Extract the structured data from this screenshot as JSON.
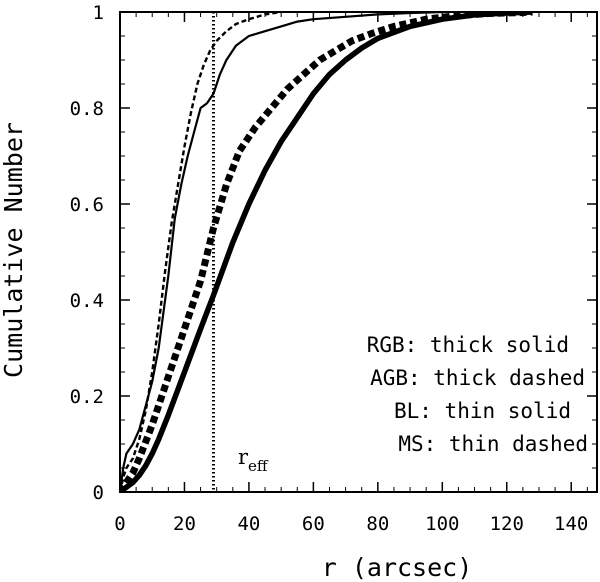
{
  "chart_data": {
    "type": "line",
    "xlabel": "r (arcsec)",
    "ylabel": "Cumulative Number",
    "xlim": [
      0,
      148
    ],
    "ylim": [
      0,
      1
    ],
    "x_ticks": [
      "0",
      "20",
      "40",
      "60",
      "80",
      "100",
      "120",
      "140"
    ],
    "y_ticks": [
      "0",
      "0.2",
      "0.4",
      "0.6",
      "0.8",
      "1"
    ],
    "grid": false,
    "legend_placement": "bottom-right",
    "legend": [
      "RGB: thick solid",
      "AGB: thick dashed",
      "BL: thin solid",
      "MS: thin dashed"
    ],
    "annotation": {
      "main": "r",
      "sub": "eff",
      "x": 29
    },
    "series": [
      {
        "name": "RGB",
        "style": "thick-solid",
        "x": [
          0,
          1,
          2,
          4,
          6,
          8,
          10,
          12,
          15,
          20,
          25,
          29,
          35,
          40,
          45,
          50,
          55,
          60,
          65,
          70,
          75,
          80,
          90,
          100,
          110,
          120,
          128
        ],
        "y": [
          0,
          0.005,
          0.01,
          0.02,
          0.035,
          0.055,
          0.08,
          0.11,
          0.16,
          0.25,
          0.34,
          0.41,
          0.52,
          0.6,
          0.67,
          0.73,
          0.78,
          0.83,
          0.87,
          0.9,
          0.925,
          0.945,
          0.97,
          0.985,
          0.994,
          0.998,
          1.0
        ]
      },
      {
        "name": "AGB",
        "style": "thick-dashed",
        "x": [
          0,
          2,
          4,
          6,
          10,
          15,
          20,
          25,
          29,
          33,
          37,
          42,
          47,
          52,
          57,
          62,
          67,
          72,
          78,
          85,
          95,
          105,
          115,
          125,
          128
        ],
        "y": [
          0,
          0.02,
          0.04,
          0.07,
          0.14,
          0.24,
          0.34,
          0.44,
          0.55,
          0.64,
          0.71,
          0.76,
          0.8,
          0.84,
          0.87,
          0.9,
          0.92,
          0.94,
          0.955,
          0.97,
          0.985,
          0.993,
          0.997,
          0.999,
          1.0
        ]
      },
      {
        "name": "BL",
        "style": "thin-solid",
        "x": [
          0,
          1,
          2,
          4,
          6,
          8,
          10,
          12,
          15,
          17,
          19,
          21,
          23,
          25,
          27,
          29,
          31,
          33,
          36,
          40,
          45,
          50,
          55,
          60,
          70,
          80,
          90,
          100
        ],
        "y": [
          0,
          0.05,
          0.08,
          0.1,
          0.13,
          0.18,
          0.23,
          0.3,
          0.45,
          0.57,
          0.64,
          0.7,
          0.75,
          0.8,
          0.81,
          0.83,
          0.87,
          0.9,
          0.93,
          0.95,
          0.96,
          0.97,
          0.98,
          0.985,
          0.99,
          0.995,
          0.998,
          1.0
        ]
      },
      {
        "name": "MS",
        "style": "thin-dashed",
        "x": [
          0,
          1,
          2,
          4,
          6,
          8,
          10,
          12,
          14,
          16,
          18,
          20,
          22,
          24,
          26,
          28,
          30,
          33,
          36,
          40,
          45,
          50
        ],
        "y": [
          0,
          0.03,
          0.05,
          0.07,
          0.11,
          0.17,
          0.25,
          0.35,
          0.46,
          0.56,
          0.64,
          0.72,
          0.79,
          0.85,
          0.89,
          0.92,
          0.94,
          0.96,
          0.975,
          0.985,
          0.995,
          1.0
        ]
      }
    ]
  }
}
